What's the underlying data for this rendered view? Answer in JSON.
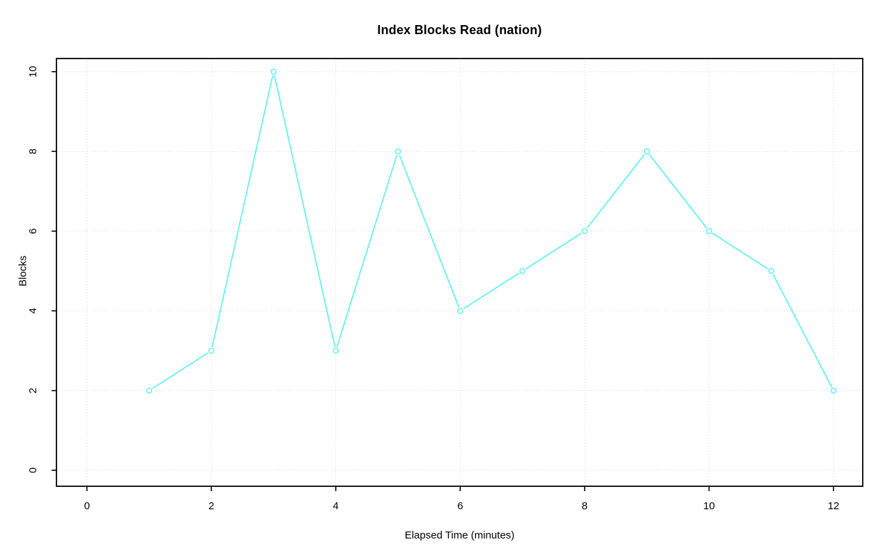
{
  "chart_data": {
    "type": "line",
    "title": "Index Blocks Read (nation)",
    "xlabel": "Elapsed Time (minutes)",
    "ylabel": "Blocks",
    "x": [
      1,
      2,
      3,
      4,
      5,
      6,
      7,
      8,
      9,
      10,
      11,
      12
    ],
    "y": [
      2,
      3,
      10,
      3,
      8,
      4,
      5,
      6,
      8,
      6,
      5,
      2
    ],
    "xticks": [
      0,
      2,
      4,
      6,
      8,
      10,
      12
    ],
    "yticks": [
      0,
      2,
      4,
      6,
      8,
      10
    ],
    "xlim": [
      -0.49,
      12.47
    ],
    "ylim": [
      -0.4,
      10.33
    ],
    "grid": true,
    "grid_style": "dotted",
    "legend": "none",
    "marker": "open-circle",
    "line_color": "#5ff0f0",
    "marker_fill": "#ffffff",
    "grid_color": "#d2d2d2",
    "axis_color": "#000000",
    "background": "#ffffff"
  }
}
